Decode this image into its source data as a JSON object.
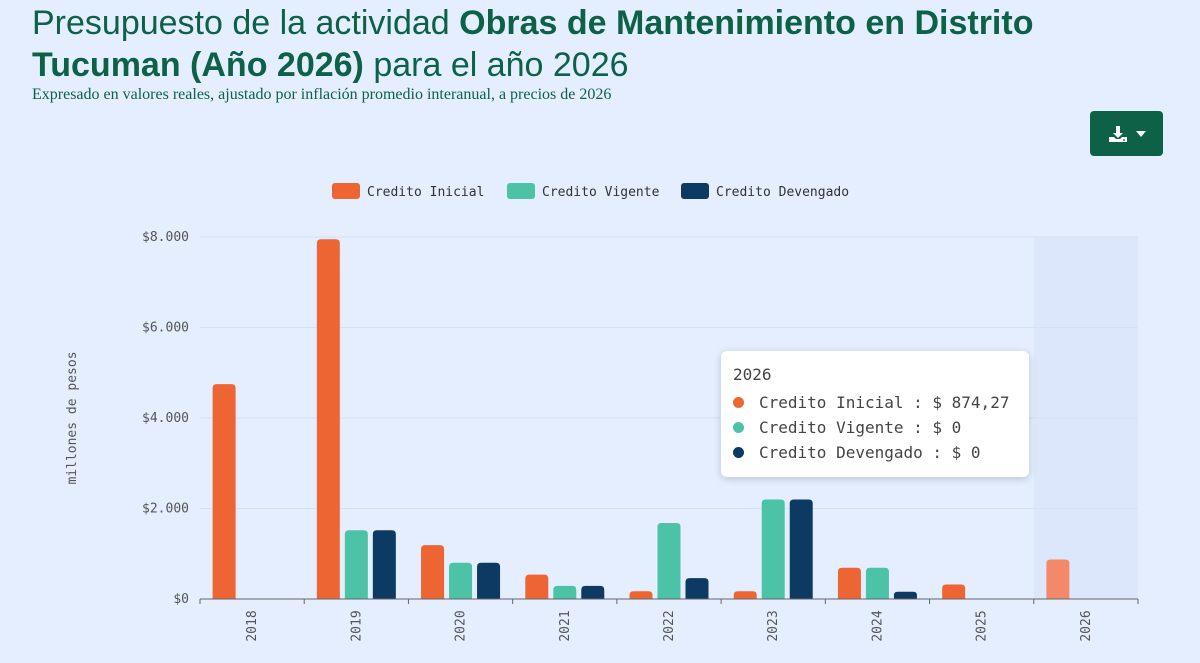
{
  "header": {
    "title_prefix": "Presupuesto de la actividad ",
    "title_bold": "Obras de Mantenimiento en Distrito Tucuman (Año 2026)",
    "title_suffix": " para el año 2026",
    "subtitle": "Expresado en valores reales, ajustado por inflación promedio interanual, a precios de 2026"
  },
  "toolbar": {
    "download_icon": "download-icon",
    "dropdown_icon": "caret-down-icon"
  },
  "chart_data": {
    "type": "bar",
    "categories": [
      "2018",
      "2019",
      "2020",
      "2021",
      "2022",
      "2023",
      "2024",
      "2025",
      "2026"
    ],
    "series": [
      {
        "name": "Credito Inicial",
        "color": "#ee6534",
        "values": [
          4750,
          7950,
          1190,
          540,
          170,
          170,
          690,
          320,
          874.27
        ]
      },
      {
        "name": "Credito Vigente",
        "color": "#4cc2a7",
        "values": [
          0,
          1520,
          800,
          290,
          1680,
          2200,
          690,
          0,
          0
        ]
      },
      {
        "name": "Credito Devengado",
        "color": "#0c3a63",
        "values": [
          0,
          1520,
          800,
          290,
          460,
          2200,
          160,
          0,
          0
        ]
      }
    ],
    "ylabel": "millones de pesos",
    "ylim": [
      0,
      8000
    ],
    "yticks": [
      "$0",
      "$2.000",
      "$4.000",
      "$6.000",
      "$8.000"
    ],
    "ytick_values": [
      0,
      2000,
      4000,
      6000,
      8000
    ],
    "legend_position": "top-center",
    "highlighted_category": "2026",
    "highlight_color": "#f4896a"
  },
  "tooltip": {
    "title": "2026",
    "rows": [
      {
        "text": "Credito Inicial : $ 874,27",
        "color": "#ee6534"
      },
      {
        "text": "Credito Vigente : $ 0",
        "color": "#4cc2a7"
      },
      {
        "text": "Credito Devengado : $ 0",
        "color": "#0c3a63"
      }
    ]
  }
}
